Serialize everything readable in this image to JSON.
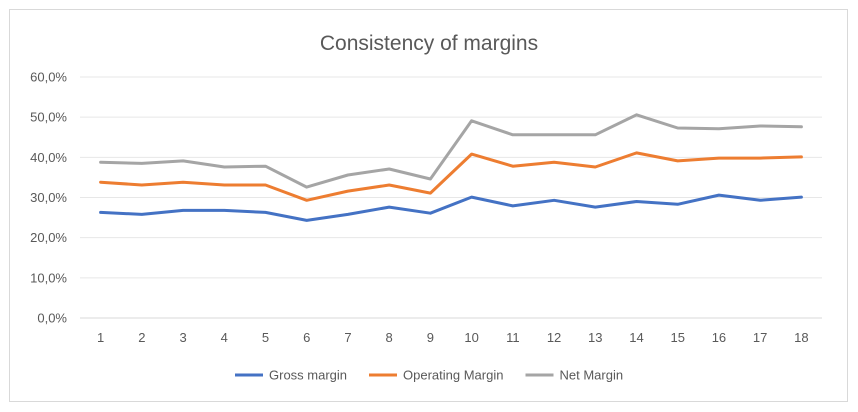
{
  "chart_data": {
    "type": "line",
    "title": "Consistency of margins",
    "xlabel": "",
    "ylabel": "",
    "categories": [
      "1",
      "2",
      "3",
      "4",
      "5",
      "6",
      "7",
      "8",
      "9",
      "10",
      "11",
      "12",
      "13",
      "14",
      "15",
      "16",
      "17",
      "18"
    ],
    "ylim": [
      0,
      60
    ],
    "yticks": [
      0,
      10,
      20,
      30,
      40,
      50,
      60
    ],
    "ytick_labels": [
      "0,0%",
      "10,0%",
      "20,0%",
      "30,0%",
      "40,0%",
      "50,0%",
      "60,0%"
    ],
    "grid": true,
    "legend_position": "bottom",
    "series": [
      {
        "name": "Gross margin",
        "color": "#4472c4",
        "values": [
          26.3,
          25.8,
          26.8,
          26.8,
          26.3,
          24.3,
          25.8,
          27.6,
          26.1,
          30.1,
          27.9,
          29.3,
          27.6,
          29.0,
          28.3,
          30.6,
          29.3,
          30.1
        ]
      },
      {
        "name": "Operating Margin",
        "color": "#ed7d31",
        "values": [
          33.8,
          33.1,
          33.8,
          33.1,
          33.1,
          29.3,
          31.6,
          33.1,
          31.1,
          40.8,
          37.8,
          38.8,
          37.6,
          41.1,
          39.1,
          39.8,
          39.8,
          40.1
        ]
      },
      {
        "name": "Net Margin",
        "color": "#a5a5a5",
        "values": [
          38.8,
          38.5,
          39.1,
          37.6,
          37.8,
          32.6,
          35.6,
          37.1,
          34.6,
          49.1,
          45.6,
          45.6,
          45.6,
          50.6,
          47.3,
          47.1,
          47.8,
          47.6
        ]
      }
    ]
  }
}
